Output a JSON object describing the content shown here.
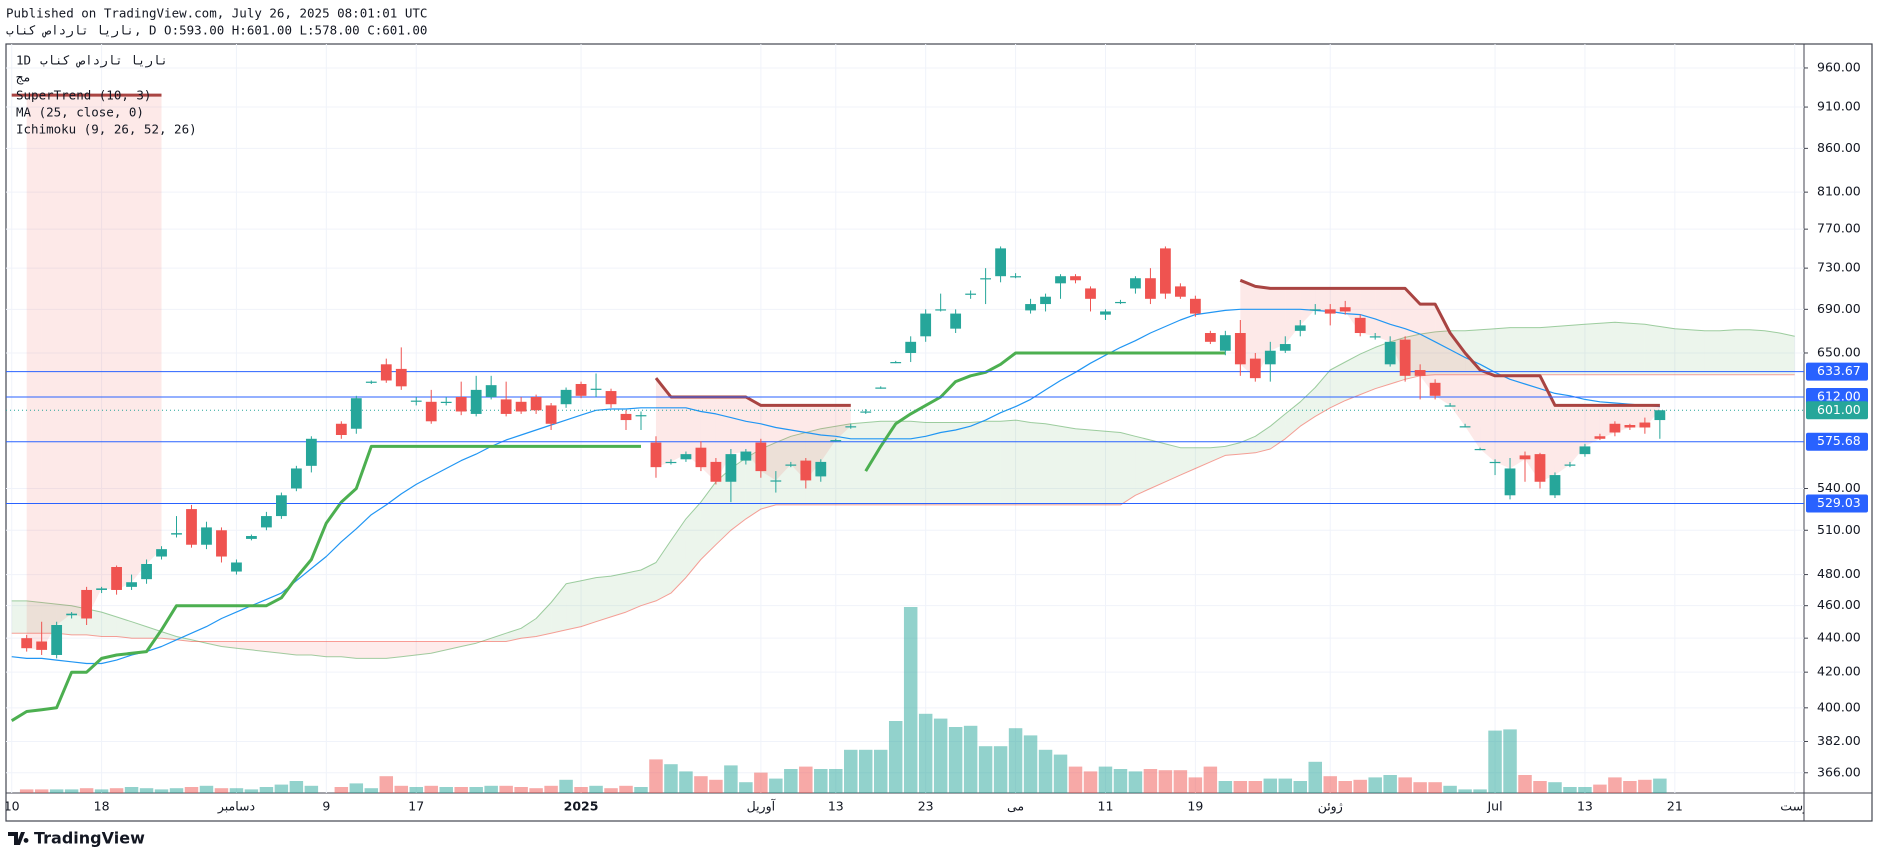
{
  "header": {
    "published": "Published on TradingView.com, July 26, 2025 08:01:01 UTC",
    "quote": "ناریا تارداص کناب, D O:593.00 H:601.00 L:578.00 C:601.00"
  },
  "chart_data": {
    "type": "candlestick",
    "symbol": "ناریا تارداص کناب",
    "interval": "1D",
    "log_scale": true,
    "grid": true,
    "up_color": "#26a69a",
    "down_color": "#ef5350",
    "ylim": [
      356,
      992
    ],
    "yticks": [
      {
        "value": 366,
        "label": "366.00"
      },
      {
        "value": 382,
        "label": "382.00"
      },
      {
        "value": 400,
        "label": "400.00"
      },
      {
        "value": 420,
        "label": "420.00"
      },
      {
        "value": 440,
        "label": "440.00"
      },
      {
        "value": 460,
        "label": "460.00"
      },
      {
        "value": 480,
        "label": "480.00"
      },
      {
        "value": 510,
        "label": "510.00"
      },
      {
        "value": 540,
        "label": "540.00"
      },
      {
        "value": 650,
        "label": "650.00"
      },
      {
        "value": 690,
        "label": "690.00"
      },
      {
        "value": 730,
        "label": "730.00"
      },
      {
        "value": 770,
        "label": "770.00"
      },
      {
        "value": 810,
        "label": "810.00"
      },
      {
        "value": 860,
        "label": "860.00"
      },
      {
        "value": 910,
        "label": "910.00"
      },
      {
        "value": 960,
        "label": "960.00"
      }
    ],
    "categories": [
      "10",
      null,
      null,
      null,
      null,
      null,
      "18",
      null,
      null,
      null,
      null,
      null,
      null,
      null,
      null,
      "دسامبر",
      null,
      null,
      null,
      null,
      null,
      "9",
      null,
      null,
      null,
      null,
      null,
      "17",
      null,
      null,
      null,
      null,
      null,
      null,
      null,
      null,
      null,
      null,
      "2025",
      null,
      null,
      null,
      null,
      null,
      null,
      null,
      null,
      null,
      null,
      null,
      "آوریل",
      null,
      null,
      null,
      null,
      "13",
      null,
      null,
      null,
      null,
      null,
      "23",
      null,
      null,
      null,
      null,
      null,
      "می",
      null,
      null,
      null,
      null,
      null,
      "11",
      null,
      null,
      null,
      null,
      null,
      "19",
      null,
      null,
      null,
      null,
      null,
      null,
      null,
      null,
      "ژوئن",
      null,
      null,
      null,
      null,
      null,
      null,
      null,
      null,
      null,
      null,
      "Jul",
      null,
      null,
      null,
      null,
      null,
      "13",
      null,
      null,
      null,
      null,
      null,
      "21",
      null,
      null,
      null,
      null,
      null,
      null,
      null,
      "وست"
    ],
    "open": [
      null,
      440,
      438,
      430,
      454,
      470,
      470,
      485,
      472,
      477,
      492,
      507,
      525,
      500,
      510,
      482,
      504,
      512,
      520,
      540,
      557,
      null,
      590,
      586,
      624,
      640,
      636,
      608,
      608,
      607,
      612,
      598,
      612,
      610,
      608,
      612,
      605,
      606,
      623,
      618,
      617,
      598,
      597,
      575,
      560,
      562,
      571,
      560,
      545,
      561,
      575,
      546,
      558,
      561,
      549,
      577,
      588,
      600,
      620,
      642,
      650,
      665,
      690,
      672,
      705,
      720,
      722,
      722,
      689,
      695,
      715,
      722,
      710,
      685,
      697,
      710,
      720,
      750,
      712,
      700,
      668,
      652,
      668,
      645,
      640,
      652,
      670,
      690,
      690,
      692,
      682,
      665,
      640,
      662,
      635,
      624,
      605,
      588,
      570,
      560,
      535,
      565,
      566,
      535,
      558,
      566,
      580,
      590,
      589,
      591,
      593,
      null,
      null,
      null,
      null,
      null,
      null,
      null,
      null,
      null
    ],
    "high": [
      null,
      442,
      450,
      450,
      456,
      472,
      472,
      486,
      480,
      490,
      499,
      520,
      528,
      516,
      512,
      490,
      507,
      523,
      537,
      557,
      580,
      null,
      592,
      613,
      626,
      645,
      655,
      612,
      618,
      612,
      625,
      630,
      630,
      625,
      612,
      614,
      607,
      620,
      625,
      632,
      619,
      601,
      600,
      580,
      562,
      568,
      576,
      563,
      570,
      570,
      578,
      553,
      560,
      563,
      562,
      578,
      590,
      602,
      621,
      643,
      665,
      690,
      705,
      690,
      708,
      730,
      752,
      725,
      700,
      705,
      724,
      724,
      712,
      690,
      699,
      722,
      730,
      752,
      715,
      703,
      670,
      670,
      680,
      650,
      660,
      665,
      680,
      695,
      695,
      698,
      685,
      668,
      665,
      665,
      640,
      627,
      607,
      590,
      571,
      562,
      563,
      568,
      567,
      552,
      560,
      574,
      582,
      592,
      590,
      595,
      601,
      null,
      null,
      null,
      null,
      null,
      null,
      null,
      null,
      null
    ],
    "low": [
      null,
      432,
      430,
      428,
      452,
      448,
      468,
      467,
      470,
      474,
      490,
      505,
      498,
      497,
      488,
      480,
      503,
      510,
      518,
      538,
      552,
      null,
      578,
      582,
      623,
      624,
      618,
      605,
      590,
      605,
      597,
      596,
      610,
      596,
      598,
      598,
      585,
      603,
      611,
      612,
      603,
      585,
      585,
      548,
      558,
      560,
      553,
      543,
      530,
      558,
      548,
      537,
      556,
      540,
      545,
      576,
      586,
      598,
      619,
      641,
      642,
      660,
      688,
      668,
      700,
      695,
      716,
      720,
      686,
      688,
      700,
      715,
      688,
      680,
      695,
      705,
      695,
      700,
      700,
      683,
      658,
      648,
      630,
      625,
      625,
      650,
      665,
      685,
      675,
      685,
      665,
      662,
      638,
      625,
      610,
      610,
      604,
      587,
      569,
      550,
      532,
      545,
      540,
      533,
      556,
      564,
      577,
      580,
      585,
      582,
      578,
      null,
      null,
      null,
      null,
      null,
      null,
      null,
      null,
      null
    ],
    "close": [
      null,
      434,
      433,
      448,
      455,
      452,
      471,
      470,
      475,
      487,
      497,
      508,
      500,
      512,
      492,
      488,
      506,
      520,
      535,
      555,
      578,
      null,
      581,
      611,
      625,
      626,
      621,
      609,
      592,
      608,
      600,
      618,
      622,
      598,
      600,
      601,
      590,
      618,
      613,
      619,
      606,
      593,
      597,
      556,
      560,
      566,
      556,
      545,
      566,
      568,
      553,
      546,
      558,
      546,
      560,
      577,
      588,
      600,
      620,
      642,
      660,
      686,
      690,
      686,
      705,
      720,
      750,
      722,
      695,
      702,
      722,
      718,
      700,
      688,
      697,
      720,
      700,
      705,
      702,
      686,
      660,
      666,
      640,
      628,
      652,
      658,
      675,
      690,
      686,
      688,
      668,
      665,
      660,
      630,
      630,
      613,
      605,
      588,
      570,
      560,
      555,
      562,
      545,
      550,
      558,
      572,
      578,
      583,
      587,
      587,
      601,
      null,
      null,
      null,
      null,
      null,
      null,
      null,
      null,
      null
    ],
    "volume": {
      "name": "مج",
      "values": [
        null,
        3,
        3,
        3,
        3,
        4,
        3,
        4,
        5,
        4,
        3,
        4,
        5,
        6,
        4,
        4,
        3,
        5,
        7,
        10,
        6,
        null,
        5,
        8,
        4,
        14,
        6,
        5,
        6,
        5,
        5,
        5,
        6,
        6,
        5,
        4,
        6,
        11,
        5,
        6,
        4,
        6,
        5,
        28,
        24,
        18,
        14,
        11,
        23,
        9,
        17,
        12,
        20,
        22,
        20,
        20,
        36,
        36,
        36,
        60,
        155,
        66,
        62,
        55,
        56,
        39,
        39,
        54,
        48,
        36,
        32,
        22,
        18,
        22,
        20,
        18,
        20,
        19,
        19,
        13,
        22,
        10,
        10,
        10,
        12,
        12,
        10,
        26,
        14,
        10,
        11,
        13,
        15,
        13,
        9,
        9,
        6,
        3,
        3,
        52,
        53,
        15,
        10,
        9,
        5,
        5,
        7,
        13,
        10,
        11,
        12,
        null,
        null,
        null,
        null,
        null,
        null,
        null,
        null,
        null
      ]
    },
    "supertrend": {
      "name": "SuperTrend (10, 3)",
      "up_color": "#4caf50",
      "down_color": "#a94442",
      "up": [
        393,
        398,
        399,
        400,
        420,
        420,
        428,
        430,
        431,
        432,
        445,
        460,
        460,
        460,
        460,
        460,
        460,
        460,
        465,
        478,
        490,
        515,
        530,
        540,
        572,
        572,
        572,
        572,
        572,
        572,
        572,
        572,
        572,
        572,
        572,
        572,
        572,
        572,
        572,
        572,
        572,
        572,
        572,
        null,
        null,
        null,
        null,
        null,
        null,
        null,
        null,
        null,
        null,
        null,
        null,
        null,
        null,
        553,
        572,
        590,
        598,
        605,
        612,
        625,
        630,
        633,
        640,
        650,
        650,
        650,
        650,
        650,
        650,
        650,
        650,
        650,
        650,
        650,
        650,
        650,
        650,
        650,
        null,
        null,
        null,
        null,
        null,
        null,
        null,
        null,
        null,
        null,
        null,
        null,
        null,
        null,
        null,
        null,
        null,
        null,
        null,
        null,
        null,
        null,
        null,
        null,
        null,
        null,
        null,
        null,
        null,
        null,
        null,
        null,
        null,
        null,
        null,
        null,
        null,
        null
      ],
      "down": [
        925,
        925,
        925,
        925,
        925,
        925,
        925,
        925,
        925,
        925,
        925,
        null,
        null,
        null,
        null,
        null,
        null,
        null,
        null,
        null,
        null,
        null,
        null,
        null,
        null,
        null,
        null,
        null,
        null,
        null,
        null,
        null,
        null,
        null,
        null,
        null,
        null,
        null,
        null,
        null,
        null,
        null,
        null,
        628,
        612,
        612,
        612,
        612,
        612,
        612,
        605,
        605,
        605,
        605,
        605,
        605,
        605,
        null,
        null,
        null,
        null,
        null,
        null,
        null,
        null,
        null,
        null,
        null,
        null,
        null,
        null,
        null,
        null,
        null,
        null,
        null,
        null,
        null,
        null,
        null,
        null,
        null,
        718,
        712,
        710,
        710,
        710,
        710,
        710,
        710,
        710,
        710,
        710,
        710,
        695,
        695,
        668,
        650,
        635,
        630,
        630,
        630,
        630,
        605,
        605,
        605,
        605,
        605,
        605,
        605,
        605,
        null,
        null,
        null,
        null,
        null,
        null,
        null,
        null,
        null
      ]
    },
    "ma": {
      "name": "MA (25, close, 0)",
      "color": "#2196f3",
      "values": [
        429,
        428,
        428,
        427,
        426,
        425,
        425,
        427,
        430,
        432,
        435,
        439,
        443,
        447,
        452,
        456,
        460,
        464,
        468,
        476,
        484,
        492,
        502,
        511,
        521,
        528,
        536,
        543,
        549,
        555,
        561,
        566,
        572,
        577,
        581,
        585,
        589,
        593,
        597,
        601,
        602,
        602,
        603,
        603,
        603,
        603,
        600,
        598,
        595,
        592,
        590,
        587,
        585,
        583,
        581,
        580,
        578,
        578,
        578,
        578,
        578,
        580,
        583,
        585,
        588,
        593,
        599,
        604,
        610,
        618,
        626,
        633,
        641,
        648,
        655,
        661,
        668,
        674,
        680,
        685,
        687,
        689,
        690,
        690,
        690,
        690,
        690,
        689,
        688,
        686,
        685,
        681,
        676,
        672,
        667,
        660,
        653,
        646,
        640,
        633,
        627,
        623,
        619,
        615,
        613,
        610,
        608,
        607,
        606,
        605,
        604,
        null,
        null,
        null,
        null,
        null,
        null,
        null,
        null,
        null
      ]
    },
    "ichimoku": {
      "name": "Ichimoku (9, 26, 52, 26)",
      "a_color": "#43a047",
      "b_color": "#f44336",
      "span_a": [
        463,
        463,
        462,
        461,
        460,
        458,
        456,
        453,
        450,
        447,
        444,
        441,
        439,
        437,
        435,
        434,
        433,
        432,
        431,
        430,
        430,
        429,
        429,
        428,
        428,
        428,
        429,
        430,
        431,
        433,
        435,
        437,
        440,
        443,
        446,
        452,
        462,
        474,
        476,
        478,
        479,
        481,
        483,
        488,
        503,
        518,
        530,
        545,
        555,
        563,
        570,
        575,
        580,
        583,
        586,
        588,
        590,
        591,
        592,
        592,
        592,
        591,
        591,
        591,
        591,
        592,
        592,
        593,
        591,
        590,
        588,
        586,
        585,
        584,
        583,
        580,
        577,
        574,
        571,
        571,
        571,
        572,
        575,
        580,
        588,
        598,
        608,
        620,
        635,
        642,
        649,
        655,
        660,
        664,
        667,
        669,
        670,
        670,
        671,
        672,
        673,
        673,
        673,
        674,
        675,
        676,
        677,
        678,
        677,
        676,
        674,
        672,
        671,
        670,
        670,
        671,
        671,
        670,
        668,
        665
      ],
      "span_b": [
        443,
        443,
        443,
        443,
        442,
        442,
        441,
        441,
        440,
        440,
        440,
        439,
        438,
        438,
        438,
        438,
        438,
        438,
        438,
        438,
        438,
        438,
        438,
        438,
        438,
        438,
        438,
        438,
        438,
        438,
        438,
        438,
        438,
        438,
        440,
        441,
        443,
        445,
        447,
        450,
        453,
        456,
        460,
        463,
        468,
        478,
        490,
        500,
        510,
        518,
        525,
        528,
        528,
        528,
        528,
        528,
        528,
        528,
        528,
        528,
        528,
        528,
        528,
        528,
        528,
        528,
        528,
        528,
        528,
        528,
        528,
        528,
        528,
        528,
        528,
        535,
        540,
        545,
        550,
        555,
        560,
        565,
        566,
        567,
        570,
        578,
        588,
        596,
        603,
        609,
        614,
        619,
        623,
        627,
        630,
        631,
        631,
        631,
        631,
        631,
        631,
        631,
        631,
        631,
        631,
        631,
        631,
        631,
        631,
        631,
        631,
        631,
        631,
        631,
        631,
        631,
        631,
        631,
        631,
        631
      ]
    },
    "price_lines": [
      {
        "value": 633.67,
        "label": "633.67",
        "color": "#2962ff"
      },
      {
        "value": 612,
        "label": "612.00",
        "color": "#2962ff"
      },
      {
        "value": 601,
        "label": "601.00",
        "color": "#26a69a",
        "dotted": true
      },
      {
        "value": 575.68,
        "label": "575.68",
        "color": "#2962ff"
      },
      {
        "value": 529.03,
        "label": "529.03",
        "color": "#2962ff"
      }
    ]
  },
  "footer": {
    "brand": "TradingView"
  }
}
